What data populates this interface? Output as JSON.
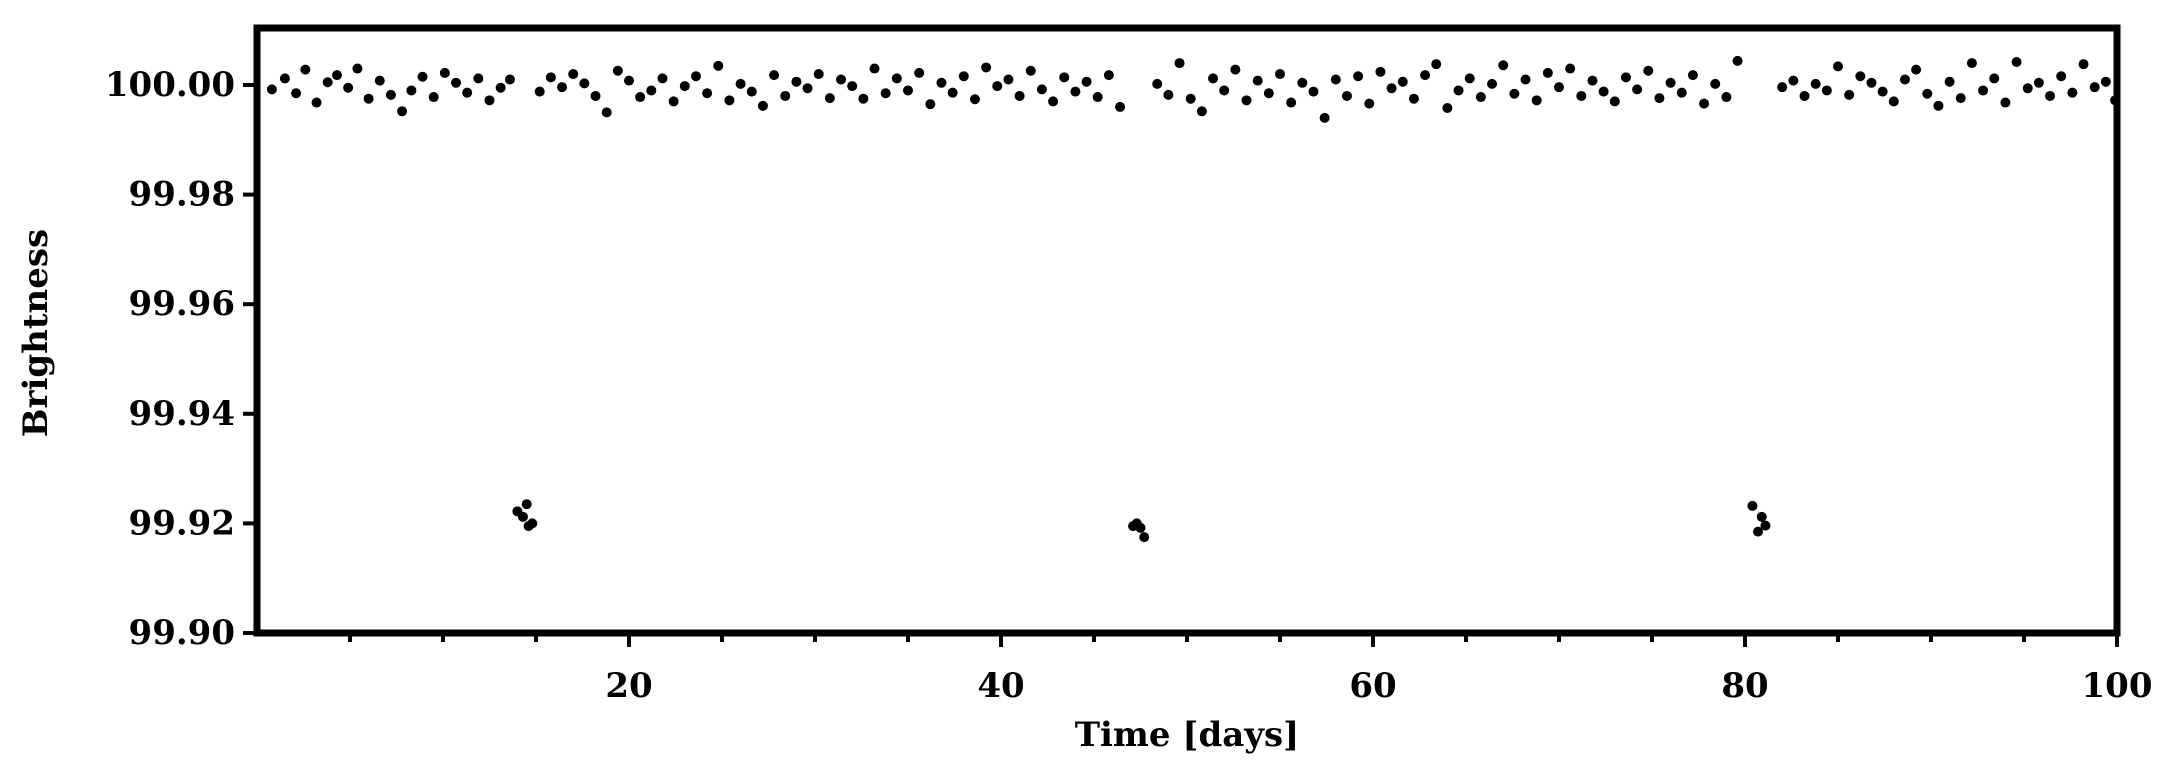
{
  "chart_data": {
    "type": "scatter",
    "xlabel": "Time [days]",
    "ylabel": "Brightness",
    "xlim": [
      0,
      100
    ],
    "ylim": [
      99.9,
      100.0104
    ],
    "xticks": [
      20,
      40,
      60,
      80,
      100
    ],
    "xminor_ticks": [
      5,
      10,
      15,
      25,
      30,
      35,
      45,
      50,
      55,
      65,
      70,
      75,
      85,
      90,
      95
    ],
    "yticks": [
      {
        "value": 99.9,
        "label": "99.90"
      },
      {
        "value": 99.92,
        "label": "99.92"
      },
      {
        "value": 99.94,
        "label": "99.94"
      },
      {
        "value": 99.96,
        "label": "99.96"
      },
      {
        "value": 99.98,
        "label": "99.98"
      },
      {
        "value": 100,
        "label": "100.00"
      }
    ],
    "color": "#000000",
    "x": [
      0.8,
      1.5,
      2.1,
      2.6,
      3.2,
      3.8,
      4.3,
      4.9,
      5.4,
      6.0,
      6.6,
      7.2,
      7.8,
      8.3,
      8.9,
      9.5,
      10.1,
      10.7,
      11.3,
      11.9,
      12.5,
      13.1,
      13.6,
      14.0,
      14.3,
      14.5,
      14.6,
      14.8,
      15.2,
      15.8,
      16.4,
      17.0,
      17.6,
      18.2,
      18.8,
      19.4,
      20.0,
      20.6,
      21.2,
      21.8,
      22.4,
      23.0,
      23.6,
      24.2,
      24.8,
      25.4,
      26.0,
      26.6,
      27.2,
      27.8,
      28.4,
      29.0,
      29.6,
      30.2,
      30.8,
      31.4,
      32.0,
      32.6,
      33.2,
      33.8,
      34.4,
      35.0,
      35.6,
      36.2,
      36.8,
      37.4,
      38.0,
      38.6,
      39.2,
      39.8,
      40.4,
      41.0,
      41.6,
      42.2,
      42.8,
      43.4,
      44.0,
      44.6,
      45.2,
      45.8,
      46.4,
      47.1,
      47.3,
      47.5,
      47.7,
      48.4,
      49.0,
      49.6,
      50.2,
      50.8,
      51.4,
      52.0,
      52.6,
      53.2,
      53.8,
      54.4,
      55.0,
      55.6,
      56.2,
      56.8,
      57.4,
      58.0,
      58.6,
      59.2,
      59.8,
      60.4,
      61.0,
      61.6,
      62.2,
      62.8,
      63.4,
      64.0,
      64.6,
      65.2,
      65.8,
      66.4,
      67.0,
      67.6,
      68.2,
      68.8,
      69.4,
      70.0,
      70.6,
      71.2,
      71.8,
      72.4,
      73.0,
      73.6,
      74.2,
      74.8,
      75.4,
      76.0,
      76.6,
      77.2,
      77.8,
      78.4,
      79.0,
      79.6,
      80.4,
      80.7,
      80.9,
      81.1,
      82.0,
      82.6,
      83.2,
      83.8,
      84.4,
      85.0,
      85.6,
      86.2,
      86.8,
      87.4,
      88.0,
      88.6,
      89.2,
      89.8,
      90.4,
      91.0,
      91.6,
      92.2,
      92.8,
      93.4,
      94.0,
      94.6,
      95.2,
      95.8,
      96.4,
      97.0,
      97.6,
      98.2,
      98.8,
      99.4,
      99.9
    ],
    "values": [
      99.9992,
      100.0012,
      99.9985,
      100.0028,
      99.9968,
      100.0005,
      100.0018,
      99.9995,
      100.003,
      99.9975,
      100.0008,
      99.9982,
      99.9952,
      99.999,
      100.0015,
      99.9978,
      100.0022,
      100.0004,
      99.9986,
      100.0012,
      99.9972,
      99.9995,
      100.001,
      99.9222,
      99.9212,
      99.9235,
      99.9195,
      99.92,
      99.9988,
      100.0014,
      99.9996,
      100.002,
      100.0003,
      99.998,
      99.995,
      100.0026,
      100.0008,
      99.9978,
      99.999,
      100.0012,
      99.997,
      99.9998,
      100.0016,
      99.9985,
      100.0035,
      99.9972,
      100.0002,
      99.9988,
      99.9962,
      100.0018,
      99.998,
      100.0006,
      99.9994,
      100.002,
      99.9976,
      100.001,
      99.9998,
      99.9975,
      100.003,
      99.9985,
      100.0012,
      99.999,
      100.0022,
      99.9965,
      100.0004,
      99.9986,
      100.0016,
      99.9974,
      100.0032,
      99.9998,
      100.001,
      99.998,
      100.0026,
      99.9992,
      99.997,
      100.0014,
      99.9988,
      100.0006,
      99.9978,
      100.0018,
      99.996,
      99.9195,
      99.92,
      99.9192,
      99.9175,
      100.0002,
      99.9982,
      100.004,
      99.9975,
      99.9952,
      100.0012,
      99.999,
      100.0028,
      99.9972,
      100.0008,
      99.9985,
      100.002,
      99.9968,
      100.0004,
      99.9988,
      99.994,
      100.001,
      99.998,
      100.0016,
      99.9966,
      100.0024,
      99.9994,
      100.0006,
      99.9975,
      100.0018,
      100.0038,
      99.9958,
      99.999,
      100.0012,
      99.9978,
      100.0002,
      100.0036,
      99.9984,
      100.001,
      99.9972,
      100.0022,
      99.9996,
      100.003,
      99.998,
      100.0008,
      99.9988,
      99.997,
      100.0014,
      99.9992,
      100.0026,
      99.9976,
      100.0004,
      99.9986,
      100.0018,
      99.9966,
      100.0002,
      99.9978,
      100.0044,
      99.9232,
      99.9185,
      99.9212,
      99.9196,
      99.9996,
      100.0008,
      99.998,
      100.0002,
      99.999,
      100.0034,
      99.9982,
      100.0016,
      100.0004,
      99.9988,
      99.997,
      100.001,
      100.0028,
      99.9984,
      99.9962,
      100.0006,
      99.9976,
      100.004,
      99.999,
      100.0012,
      99.9968,
      100.0042,
      99.9994,
      100.0004,
      99.998,
      100.0016,
      99.9986,
      100.0038,
      99.9996,
      100.0006,
      99.9972
    ]
  }
}
